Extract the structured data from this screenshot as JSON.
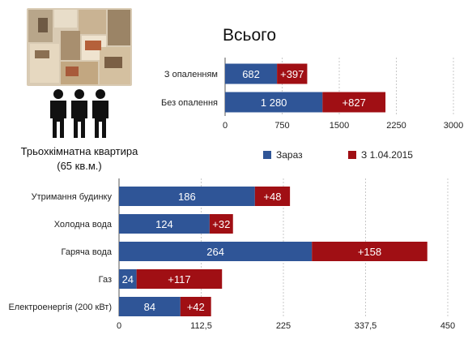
{
  "caption": {
    "line1": "Трьохкімнатна квартира",
    "line2": "(65 кв.м.)"
  },
  "colors": {
    "current": "#2f5597",
    "increase": "#a00f14"
  },
  "chart_data": [
    {
      "type": "bar",
      "orientation": "horizontal",
      "stacked": true,
      "title": "Всього",
      "categories": [
        "З опаленням",
        "Без опалення"
      ],
      "series": [
        {
          "name": "Зараз",
          "values": [
            682,
            1280
          ],
          "labels": [
            "682",
            "1 280"
          ]
        },
        {
          "name": "З 1.04.2015",
          "values": [
            397,
            827
          ],
          "labels": [
            "+397",
            "+827"
          ]
        }
      ],
      "xlim": [
        0,
        3000
      ],
      "x_ticks": [
        "0",
        "750",
        "1500",
        "2250",
        "3000"
      ],
      "x_tick_values": [
        0,
        750,
        1500,
        2250,
        3000
      ],
      "grid": true,
      "legend": {
        "position": "bottom",
        "items": [
          "Зараз",
          "З 1.04.2015"
        ]
      }
    },
    {
      "type": "bar",
      "orientation": "horizontal",
      "stacked": true,
      "categories": [
        "Утримання будинку",
        "Холодна вода",
        "Гаряча вода",
        "Газ",
        "Електроенергія (200 кВт)"
      ],
      "series": [
        {
          "name": "Зараз",
          "values": [
            186,
            124,
            264,
            24,
            84
          ],
          "labels": [
            "186",
            "124",
            "264",
            "24",
            "84"
          ]
        },
        {
          "name": "З 1.04.2015",
          "values": [
            48,
            32,
            158,
            117,
            42
          ],
          "labels": [
            "+48",
            "+32",
            "+158",
            "+117",
            "+42"
          ]
        }
      ],
      "xlim": [
        0,
        450
      ],
      "x_ticks": [
        "0",
        "112,5",
        "225",
        "337,5",
        "450"
      ],
      "x_tick_values": [
        0,
        112.5,
        225,
        337.5,
        450
      ],
      "grid": true
    }
  ]
}
